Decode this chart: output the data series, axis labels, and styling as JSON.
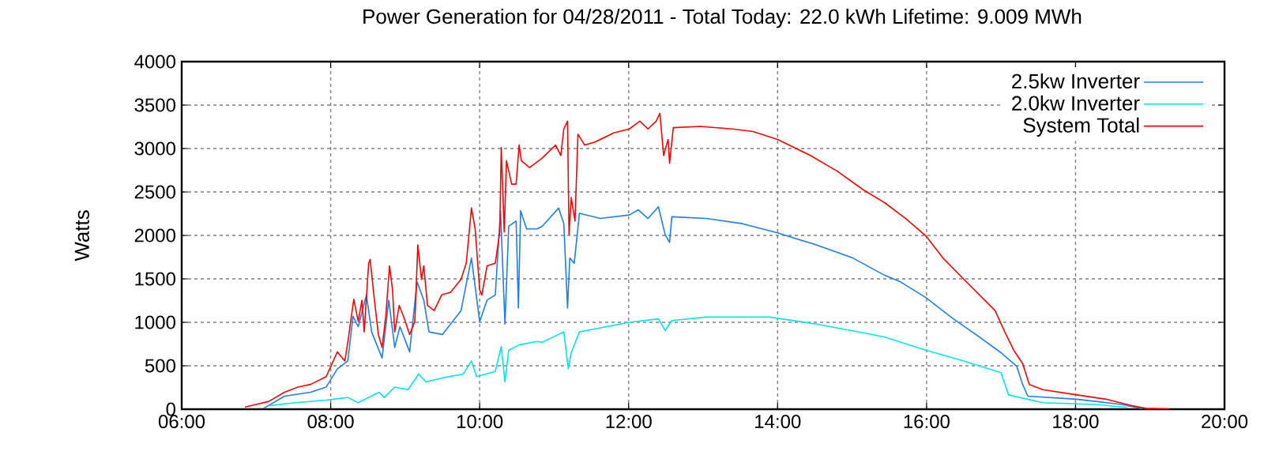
{
  "chart_data": {
    "type": "line",
    "title": "Power Generation for 04/28/2011 - Total Today: 22.0 kWh   Lifetime: 9.009 MWh",
    "ylabel": "Watts",
    "xlim": [
      6,
      20
    ],
    "xticks": [
      {
        "value": 6,
        "label": "06:00"
      },
      {
        "value": 8,
        "label": "08:00"
      },
      {
        "value": 10,
        "label": "10:00"
      },
      {
        "value": 12,
        "label": "12:00"
      },
      {
        "value": 14,
        "label": "14:00"
      },
      {
        "value": 16,
        "label": "16:00"
      },
      {
        "value": 18,
        "label": "18:00"
      },
      {
        "value": 20,
        "label": "20:00"
      }
    ],
    "ylim": [
      0,
      4000
    ],
    "yticks": [
      0,
      500,
      1000,
      1500,
      2000,
      2500,
      3000,
      3500,
      4000
    ],
    "grid": true,
    "legend": "top right",
    "series": [
      {
        "name": "2.5kw Inverter",
        "color": "#1f7fe8",
        "x": [
          7.1,
          7.38,
          7.73,
          7.94,
          8.09,
          8.23,
          8.3,
          8.37,
          8.48,
          8.55,
          8.69,
          8.78,
          8.86,
          8.93,
          9.06,
          9.16,
          9.25,
          9.32,
          9.5,
          9.75,
          9.89,
          10.0,
          10.1,
          10.21,
          10.28,
          10.34,
          10.39,
          10.49,
          10.52,
          10.55,
          10.63,
          10.77,
          10.84,
          11.06,
          11.13,
          11.18,
          11.21,
          11.27,
          11.34,
          11.62,
          12.01,
          12.13,
          12.26,
          12.4,
          12.49,
          12.55,
          12.58,
          13.04,
          13.53,
          14.0,
          14.52,
          15.01,
          15.44,
          15.65,
          15.99,
          16.36,
          16.71,
          17.0,
          17.21,
          17.29,
          17.36,
          18.02,
          18.62,
          18.9
        ],
        "values": [
          10,
          150,
          195,
          255,
          465,
          555,
          1070,
          950,
          1315,
          890,
          590,
          1255,
          710,
          950,
          660,
          1465,
          1255,
          890,
          860,
          1135,
          1740,
          1010,
          1255,
          1315,
          2285,
          980,
          2105,
          2165,
          1165,
          2285,
          2075,
          2075,
          2105,
          2315,
          2135,
          1165,
          1740,
          1680,
          2255,
          2195,
          2235,
          2295,
          2195,
          2330,
          2010,
          1920,
          2215,
          2195,
          2135,
          2030,
          1890,
          1740,
          1540,
          1465,
          1285,
          1040,
          830,
          650,
          495,
          285,
          150,
          115,
          55,
          5
        ]
      },
      {
        "name": "2.0kw Inverter",
        "color": "#00e5e5",
        "x": [
          7.17,
          7.52,
          7.94,
          8.23,
          8.37,
          8.65,
          8.72,
          8.86,
          9.04,
          9.18,
          9.28,
          9.5,
          9.78,
          9.89,
          9.96,
          10.21,
          10.29,
          10.34,
          10.39,
          10.53,
          10.77,
          10.84,
          11.13,
          11.19,
          11.23,
          11.34,
          12.01,
          12.4,
          12.49,
          12.58,
          13.04,
          13.89,
          14.52,
          15.15,
          15.44,
          15.99,
          16.5,
          17.0,
          17.1,
          17.56,
          18.27,
          18.69
        ],
        "values": [
          40,
          75,
          105,
          135,
          75,
          195,
          135,
          255,
          225,
          405,
          315,
          360,
          405,
          555,
          375,
          435,
          720,
          315,
          680,
          740,
          780,
          770,
          890,
          465,
          650,
          890,
          1000,
          1040,
          905,
          1020,
          1060,
          1060,
          980,
          880,
          830,
          680,
          555,
          420,
          165,
          75,
          55,
          20
        ]
      },
      {
        "name": "System Total",
        "color": "#ff0000",
        "x": [
          6.85,
          7.17,
          7.38,
          7.56,
          7.73,
          7.94,
          8.09,
          8.19,
          8.23,
          8.31,
          8.37,
          8.42,
          8.45,
          8.51,
          8.53,
          8.58,
          8.64,
          8.69,
          8.74,
          8.79,
          8.83,
          8.86,
          8.92,
          8.99,
          9.06,
          9.13,
          9.17,
          9.22,
          9.25,
          9.3,
          9.39,
          9.49,
          9.61,
          9.75,
          9.82,
          9.89,
          9.94,
          10.0,
          10.03,
          10.1,
          10.21,
          10.27,
          10.29,
          10.33,
          10.36,
          10.43,
          10.49,
          10.53,
          10.56,
          10.67,
          10.84,
          11.02,
          11.09,
          11.13,
          11.18,
          11.2,
          11.23,
          11.28,
          11.32,
          11.41,
          11.55,
          11.8,
          12.01,
          12.15,
          12.26,
          12.37,
          12.42,
          12.47,
          12.53,
          12.55,
          12.6,
          12.96,
          13.39,
          13.67,
          14.0,
          14.44,
          14.8,
          15.15,
          15.44,
          15.72,
          15.99,
          16.22,
          16.5,
          16.71,
          16.92,
          17.05,
          17.17,
          17.29,
          17.38,
          17.56,
          18.02,
          18.41,
          18.76,
          18.94,
          19.26
        ],
        "values": [
          25,
          90,
          195,
          255,
          285,
          375,
          660,
          555,
          770,
          1265,
          1010,
          1255,
          890,
          1680,
          1725,
          1315,
          860,
          710,
          1070,
          1650,
          1375,
          890,
          1195,
          1040,
          860,
          1010,
          1890,
          1495,
          1650,
          1195,
          1135,
          1315,
          1345,
          1495,
          1680,
          2315,
          2075,
          1375,
          1315,
          1650,
          1680,
          2040,
          3010,
          2040,
          2860,
          2590,
          2590,
          3040,
          2860,
          2780,
          2890,
          3040,
          2920,
          3225,
          3315,
          2010,
          2435,
          2165,
          3165,
          3040,
          3075,
          3180,
          3225,
          3315,
          3225,
          3315,
          3405,
          2920,
          3105,
          2830,
          3240,
          3255,
          3225,
          3195,
          3105,
          2920,
          2740,
          2525,
          2375,
          2195,
          1995,
          1740,
          1495,
          1315,
          1135,
          890,
          680,
          525,
          285,
          225,
          165,
          115,
          40,
          10,
          5
        ]
      }
    ]
  }
}
